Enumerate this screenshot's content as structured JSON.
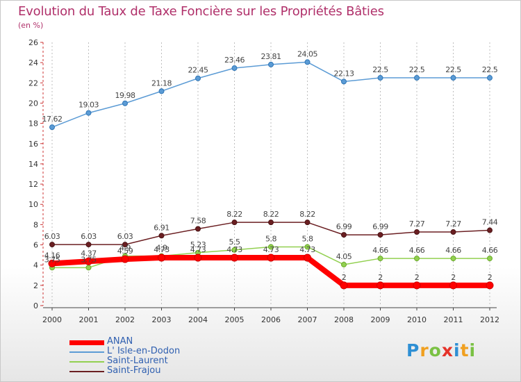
{
  "chart_data": {
    "type": "line",
    "title": "Evolution du Taux de Taxe Foncière sur les Propriétés Bâties",
    "unit": "(en %)",
    "x": [
      "2000",
      "2001",
      "2002",
      "2003",
      "2004",
      "2005",
      "2006",
      "2007",
      "2008",
      "2009",
      "2010",
      "2011",
      "2012"
    ],
    "ylim": [
      0,
      26
    ],
    "yticks": [
      0,
      2,
      4,
      6,
      8,
      10,
      12,
      14,
      16,
      18,
      20,
      22,
      24,
      26
    ],
    "grid": "vertical",
    "legend_position": "bottom-left",
    "series": [
      {
        "name": "ANAN",
        "color": "#ff0000",
        "values": [
          4.16,
          4.37,
          4.59,
          4.73,
          4.73,
          4.73,
          4.73,
          4.73,
          2,
          2,
          2,
          2,
          2
        ],
        "labels": [
          "4.16",
          "4.37",
          "4.59",
          "4.73",
          "4.73",
          "4.73",
          "4.73",
          "4.73",
          "2",
          "2",
          "2",
          "2",
          "2"
        ]
      },
      {
        "name": "L' Isle-en-Dodon",
        "color": "#5b9bd5",
        "values": [
          17.62,
          19.03,
          19.98,
          21.18,
          22.45,
          23.46,
          23.81,
          24.05,
          22.13,
          22.5,
          22.5,
          22.5,
          22.5
        ],
        "labels": [
          "17.62",
          "19.03",
          "19.98",
          "21.18",
          "22.45",
          "23.46",
          "23.81",
          "24.05",
          "22.13",
          "22.5",
          "22.5",
          "22.5",
          "22.5"
        ]
      },
      {
        "name": "Saint-Laurent",
        "color": "#92d050",
        "values": [
          3.75,
          3.75,
          4.9,
          4.9,
          5.23,
          5.5,
          5.8,
          5.8,
          4.05,
          4.66,
          4.66,
          4.66,
          4.66
        ],
        "labels": [
          "3.75",
          "3.75",
          "4.9",
          "4.9",
          "5.23",
          "5.5",
          "5.8",
          "5.8",
          "4.05",
          "4.66",
          "4.66",
          "4.66",
          "4.66"
        ]
      },
      {
        "name": "Saint-Frajou",
        "color": "#6b1f22",
        "values": [
          6.03,
          6.03,
          6.03,
          6.91,
          7.58,
          8.22,
          8.22,
          8.22,
          6.99,
          6.99,
          7.27,
          7.27,
          7.44
        ],
        "labels": [
          "6.03",
          "6.03",
          "6.03",
          "6.91",
          "7.58",
          "8.22",
          "8.22",
          "8.22",
          "6.99",
          "6.99",
          "7.27",
          "7.27",
          "7.44"
        ]
      }
    ]
  },
  "logo": {
    "letters": [
      "P",
      "r",
      "o",
      "x",
      "i",
      "t",
      "i"
    ],
    "colors": [
      "#2e8fd4",
      "#f0a020",
      "#7ac143",
      "#e5332a",
      "#2e8fd4",
      "#f0a020",
      "#7ac143"
    ]
  }
}
